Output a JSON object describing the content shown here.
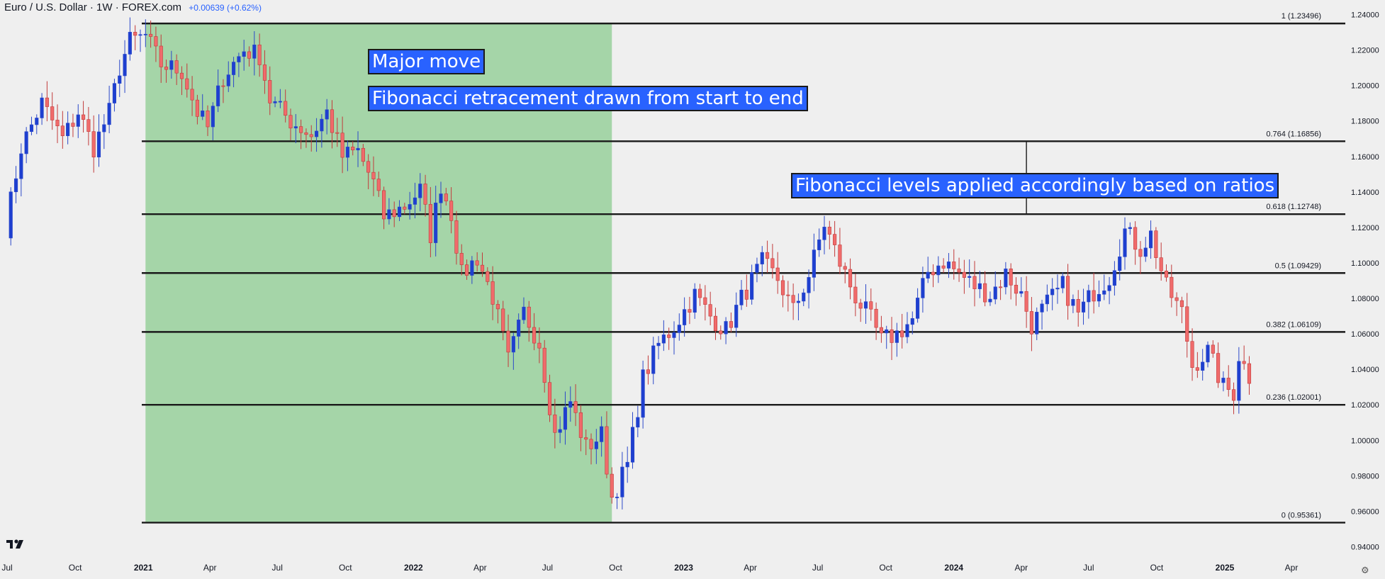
{
  "header": {
    "symbol": "Euro / U.S. Dollar · 1W · FOREX.com",
    "change": "+0.00639 (+0.62%)"
  },
  "annotations": {
    "major_move": "Major move",
    "fib_drawn": "Fibonacci retracement drawn from start to end",
    "fib_levels": "Fibonacci levels applied accordingly based on ratios"
  },
  "colors": {
    "up_body": "#1e3fd0",
    "down_body": "#f06b6b",
    "wick_up": "#2c49c9",
    "wick_down": "#c23b3b",
    "shade": "#a5d5a8",
    "line": "#1a1a1a",
    "background": "#efefef",
    "annotation_bg": "#2962ff"
  },
  "icons": {
    "logo": "tradingview-logo-icon",
    "settings": "gear-icon"
  },
  "chart_data": {
    "type": "candlestick",
    "title": "Euro / U.S. Dollar · 1W · FOREX.com",
    "x_axis": {
      "ticks": [
        {
          "label": "Jul",
          "date": "2020-07-01"
        },
        {
          "label": "Oct",
          "date": "2020-10-01"
        },
        {
          "label": "2021",
          "date": "2021-01-01",
          "bold": true
        },
        {
          "label": "Apr",
          "date": "2021-04-01"
        },
        {
          "label": "Jul",
          "date": "2021-07-01"
        },
        {
          "label": "Oct",
          "date": "2021-10-01"
        },
        {
          "label": "2022",
          "date": "2022-01-01",
          "bold": true
        },
        {
          "label": "Apr",
          "date": "2022-04-01"
        },
        {
          "label": "Jul",
          "date": "2022-07-01"
        },
        {
          "label": "Oct",
          "date": "2022-10-01"
        },
        {
          "label": "2023",
          "date": "2023-01-01",
          "bold": true
        },
        {
          "label": "Apr",
          "date": "2023-04-01"
        },
        {
          "label": "Jul",
          "date": "2023-07-01"
        },
        {
          "label": "Oct",
          "date": "2023-10-01"
        },
        {
          "label": "2024",
          "date": "2024-01-01",
          "bold": true
        },
        {
          "label": "Apr",
          "date": "2024-04-01"
        },
        {
          "label": "Jul",
          "date": "2024-07-01"
        },
        {
          "label": "Oct",
          "date": "2024-10-01"
        },
        {
          "label": "2025",
          "date": "2025-01-01",
          "bold": true
        },
        {
          "label": "Apr",
          "date": "2025-04-01"
        }
      ]
    },
    "y_axis": {
      "range": [
        0.935,
        1.245
      ],
      "ticks": [
        "1.24000",
        "1.22000",
        "1.20000",
        "1.18000",
        "1.16000",
        "1.14000",
        "1.12000",
        "1.10000",
        "1.08000",
        "1.06000",
        "1.04000",
        "1.02000",
        "1.00000",
        "0.98000",
        "0.96000",
        "0.94000"
      ]
    },
    "fib_levels": [
      {
        "label": "1 (1.23496)",
        "value": 1.23496
      },
      {
        "label": "0.764 (1.16856)",
        "value": 1.16856
      },
      {
        "label": "0.618 (1.12748)",
        "value": 1.12748
      },
      {
        "label": "0.5 (1.09429)",
        "value": 1.09429
      },
      {
        "label": "0.382 (1.06109)",
        "value": 1.06109
      },
      {
        "label": "0.236 (1.02001)",
        "value": 1.02001
      },
      {
        "label": "0 (0.95361)",
        "value": 0.95361
      }
    ],
    "highlight_range": {
      "start": "2021-01-04",
      "end": "2022-09-26"
    },
    "callout_connector": {
      "date": "2024-04-08"
    },
    "series": [
      {
        "date": "2020-06-29",
        "close": 1.12
      },
      {
        "date": "2020-07-20",
        "close": 1.165
      },
      {
        "date": "2020-08-17",
        "close": 1.19
      },
      {
        "date": "2020-09-14",
        "close": 1.17
      },
      {
        "date": "2020-10-05",
        "close": 1.185
      },
      {
        "date": "2020-10-26",
        "close": 1.165
      },
      {
        "date": "2020-11-16",
        "close": 1.185
      },
      {
        "date": "2020-11-30",
        "close": 1.21
      },
      {
        "date": "2020-12-14",
        "close": 1.225
      },
      {
        "date": "2021-01-04",
        "close": 1.228
      },
      {
        "date": "2021-01-25",
        "close": 1.212
      },
      {
        "date": "2021-02-22",
        "close": 1.208
      },
      {
        "date": "2021-03-15",
        "close": 1.185
      },
      {
        "date": "2021-03-29",
        "close": 1.176
      },
      {
        "date": "2021-04-19",
        "close": 1.205
      },
      {
        "date": "2021-05-17",
        "close": 1.22
      },
      {
        "date": "2021-06-07",
        "close": 1.217
      },
      {
        "date": "2021-06-21",
        "close": 1.192
      },
      {
        "date": "2021-07-19",
        "close": 1.18
      },
      {
        "date": "2021-08-16",
        "close": 1.172
      },
      {
        "date": "2021-09-06",
        "close": 1.185
      },
      {
        "date": "2021-09-27",
        "close": 1.16
      },
      {
        "date": "2021-10-18",
        "close": 1.163
      },
      {
        "date": "2021-11-08",
        "close": 1.145
      },
      {
        "date": "2021-11-22",
        "close": 1.126
      },
      {
        "date": "2021-12-20",
        "close": 1.132
      },
      {
        "date": "2022-01-10",
        "close": 1.141
      },
      {
        "date": "2022-01-24",
        "close": 1.116
      },
      {
        "date": "2022-02-07",
        "close": 1.144
      },
      {
        "date": "2022-02-21",
        "close": 1.128
      },
      {
        "date": "2022-03-07",
        "close": 1.093
      },
      {
        "date": "2022-03-28",
        "close": 1.103
      },
      {
        "date": "2022-04-18",
        "close": 1.081
      },
      {
        "date": "2022-05-09",
        "close": 1.045
      },
      {
        "date": "2022-05-30",
        "close": 1.072
      },
      {
        "date": "2022-06-20",
        "close": 1.055
      },
      {
        "date": "2022-07-11",
        "close": 1.003
      },
      {
        "date": "2022-08-01",
        "close": 1.022
      },
      {
        "date": "2022-08-22",
        "close": 0.996
      },
      {
        "date": "2022-09-12",
        "close": 1.003
      },
      {
        "date": "2022-09-26",
        "close": 0.968
      },
      {
        "date": "2022-10-17",
        "close": 0.986
      },
      {
        "date": "2022-11-07",
        "close": 1.035
      },
      {
        "date": "2022-11-28",
        "close": 1.054
      },
      {
        "date": "2022-12-19",
        "close": 1.064
      },
      {
        "date": "2023-01-16",
        "close": 1.082
      },
      {
        "date": "2023-02-06",
        "close": 1.07
      },
      {
        "date": "2023-02-27",
        "close": 1.062
      },
      {
        "date": "2023-03-20",
        "close": 1.08
      },
      {
        "date": "2023-04-17",
        "close": 1.1
      },
      {
        "date": "2023-05-08",
        "close": 1.091
      },
      {
        "date": "2023-05-29",
        "close": 1.073
      },
      {
        "date": "2023-06-19",
        "close": 1.093
      },
      {
        "date": "2023-07-10",
        "close": 1.122
      },
      {
        "date": "2023-07-31",
        "close": 1.1
      },
      {
        "date": "2023-08-21",
        "close": 1.081
      },
      {
        "date": "2023-09-11",
        "close": 1.068
      },
      {
        "date": "2023-09-25",
        "close": 1.056
      },
      {
        "date": "2023-10-16",
        "close": 1.06
      },
      {
        "date": "2023-11-06",
        "close": 1.068
      },
      {
        "date": "2023-11-27",
        "close": 1.095
      },
      {
        "date": "2023-12-18",
        "close": 1.101
      },
      {
        "date": "2024-01-08",
        "close": 1.094
      },
      {
        "date": "2024-01-29",
        "close": 1.087
      },
      {
        "date": "2024-02-19",
        "close": 1.082
      },
      {
        "date": "2024-03-11",
        "close": 1.094
      },
      {
        "date": "2024-04-01",
        "close": 1.082
      },
      {
        "date": "2024-04-15",
        "close": 1.065
      },
      {
        "date": "2024-05-06",
        "close": 1.077
      },
      {
        "date": "2024-05-27",
        "close": 1.087
      },
      {
        "date": "2024-06-17",
        "close": 1.071
      },
      {
        "date": "2024-07-08",
        "close": 1.084
      },
      {
        "date": "2024-07-29",
        "close": 1.092
      },
      {
        "date": "2024-08-19",
        "close": 1.118
      },
      {
        "date": "2024-09-09",
        "close": 1.108
      },
      {
        "date": "2024-09-23",
        "close": 1.116
      },
      {
        "date": "2024-10-14",
        "close": 1.086
      },
      {
        "date": "2024-11-04",
        "close": 1.072
      },
      {
        "date": "2024-11-18",
        "close": 1.042
      },
      {
        "date": "2024-12-09",
        "close": 1.05
      },
      {
        "date": "2024-12-30",
        "close": 1.03
      },
      {
        "date": "2025-01-13",
        "close": 1.027
      },
      {
        "date": "2025-01-20",
        "close": 1.048
      },
      {
        "date": "2025-02-03",
        "close": 1.036
      }
    ]
  }
}
